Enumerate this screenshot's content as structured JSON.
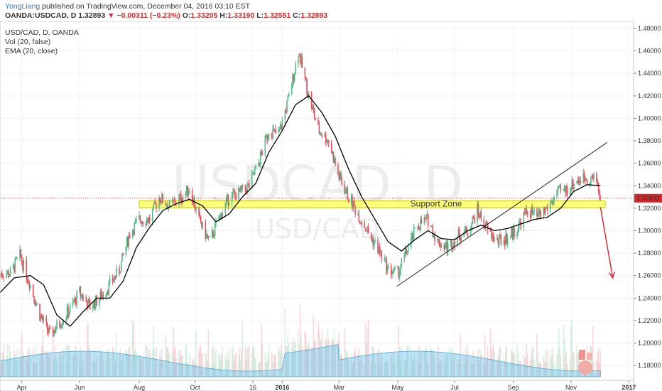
{
  "header": {
    "author": "YongLiang",
    "published_text": "published on TradingView.com, December 04, 2016 03:10 EST",
    "symbol": "OANDA:USDCAD, D",
    "last": "1.32893",
    "change": "−0.00311 (−0.23%)",
    "open_label": "O:",
    "open": "1.33205",
    "high_label": "H:",
    "high": "1.33190",
    "low_label": "L:",
    "low": "1.32551",
    "close_label": "C:",
    "close": "1.32893"
  },
  "legend": [
    "USD/CAD, D, OANDA",
    "Vol (20, false)",
    "EMA (20, close)"
  ],
  "watermark": {
    "big": "USDCAD, D",
    "small": "USD/CAD"
  },
  "annotations": {
    "support_zone": "Support Zone",
    "current_price": "1.32893"
  },
  "colors": {
    "up": "#53b987",
    "down": "#eb4d5c",
    "ema": "#000000",
    "volume_area": "#6fc1e8",
    "zone_fill": "#ffff66",
    "zone_stroke": "#c8c800",
    "arrow": "#e2202c",
    "price_tag": "#d62728"
  },
  "chart_data": {
    "type": "candlestick",
    "title": "USD/CAD, D, OANDA",
    "ylim": [
      1.17,
      1.48
    ],
    "y_ticks": [
      "1.48000",
      "1.46000",
      "1.44000",
      "1.42000",
      "1.40000",
      "1.38000",
      "1.36000",
      "1.34000",
      "1.32000",
      "1.30000",
      "1.28000",
      "1.26000",
      "1.24000",
      "1.22000",
      "1.20000",
      "1.18000"
    ],
    "x_ticks": [
      "Apr",
      "Jun",
      "Aug",
      "Oct",
      "16",
      "2016",
      "Mar",
      "May",
      "Jul",
      "Sep",
      "Nov",
      "2017"
    ],
    "x_start": "2015-03-09",
    "x_end": "2017-01-06",
    "closes": [
      [
        "2015-03-09",
        1.262
      ],
      [
        "2015-03-20",
        1.262
      ],
      [
        "2015-03-30",
        1.278
      ],
      [
        "2015-04-10",
        1.252
      ],
      [
        "2015-04-20",
        1.225
      ],
      [
        "2015-05-01",
        1.207
      ],
      [
        "2015-05-11",
        1.218
      ],
      [
        "2015-05-22",
        1.23
      ],
      [
        "2015-06-01",
        1.245
      ],
      [
        "2015-06-12",
        1.232
      ],
      [
        "2015-06-22",
        1.24
      ],
      [
        "2015-07-03",
        1.252
      ],
      [
        "2015-07-13",
        1.265
      ],
      [
        "2015-07-24",
        1.298
      ],
      [
        "2015-08-03",
        1.31
      ],
      [
        "2015-08-14",
        1.31
      ],
      [
        "2015-08-24",
        1.33
      ],
      [
        "2015-09-04",
        1.322
      ],
      [
        "2015-09-14",
        1.327
      ],
      [
        "2015-09-25",
        1.338
      ],
      [
        "2015-10-05",
        1.31
      ],
      [
        "2015-10-16",
        1.29
      ],
      [
        "2015-10-26",
        1.31
      ],
      [
        "2015-11-06",
        1.33
      ],
      [
        "2015-11-16",
        1.333
      ],
      [
        "2015-11-27",
        1.34
      ],
      [
        "2015-12-07",
        1.36
      ],
      [
        "2015-12-18",
        1.39
      ],
      [
        "2015-12-28",
        1.385
      ],
      [
        "2016-01-08",
        1.418
      ],
      [
        "2016-01-18",
        1.46
      ],
      [
        "2016-01-29",
        1.42
      ],
      [
        "2016-02-08",
        1.39
      ],
      [
        "2016-02-19",
        1.38
      ],
      [
        "2016-02-29",
        1.35
      ],
      [
        "2016-03-11",
        1.33
      ],
      [
        "2016-03-21",
        1.315
      ],
      [
        "2016-04-01",
        1.298
      ],
      [
        "2016-04-11",
        1.284
      ],
      [
        "2016-04-22",
        1.265
      ],
      [
        "2016-05-02",
        1.262
      ],
      [
        "2016-05-13",
        1.285
      ],
      [
        "2016-05-23",
        1.305
      ],
      [
        "2016-06-03",
        1.31
      ],
      [
        "2016-06-13",
        1.29
      ],
      [
        "2016-06-24",
        1.285
      ],
      [
        "2016-07-04",
        1.295
      ],
      [
        "2016-07-15",
        1.3
      ],
      [
        "2016-07-25",
        1.318
      ],
      [
        "2016-08-05",
        1.3
      ],
      [
        "2016-08-15",
        1.29
      ],
      [
        "2016-08-26",
        1.294
      ],
      [
        "2016-09-05",
        1.302
      ],
      [
        "2016-09-16",
        1.318
      ],
      [
        "2016-09-26",
        1.312
      ],
      [
        "2016-10-07",
        1.32
      ],
      [
        "2016-10-17",
        1.333
      ],
      [
        "2016-10-28",
        1.337
      ],
      [
        "2016-11-07",
        1.345
      ],
      [
        "2016-11-18",
        1.348
      ],
      [
        "2016-11-28",
        1.345
      ],
      [
        "2016-12-02",
        1.329
      ]
    ],
    "ema": [
      [
        "2015-03-09",
        1.245
      ],
      [
        "2015-03-24",
        1.258
      ],
      [
        "2015-04-10",
        1.26
      ],
      [
        "2015-04-24",
        1.252
      ],
      [
        "2015-05-08",
        1.225
      ],
      [
        "2015-05-22",
        1.215
      ],
      [
        "2015-06-05",
        1.228
      ],
      [
        "2015-06-19",
        1.24
      ],
      [
        "2015-07-03",
        1.24
      ],
      [
        "2015-07-17",
        1.255
      ],
      [
        "2015-07-31",
        1.285
      ],
      [
        "2015-08-14",
        1.303
      ],
      [
        "2015-08-28",
        1.318
      ],
      [
        "2015-09-11",
        1.324
      ],
      [
        "2015-09-25",
        1.328
      ],
      [
        "2015-10-09",
        1.322
      ],
      [
        "2015-10-23",
        1.308
      ],
      [
        "2015-11-06",
        1.315
      ],
      [
        "2015-11-20",
        1.33
      ],
      [
        "2015-12-04",
        1.342
      ],
      [
        "2015-12-18",
        1.37
      ],
      [
        "2016-01-01",
        1.389
      ],
      [
        "2016-01-15",
        1.412
      ],
      [
        "2016-01-29",
        1.42
      ],
      [
        "2016-02-12",
        1.405
      ],
      [
        "2016-02-26",
        1.384
      ],
      [
        "2016-03-11",
        1.355
      ],
      [
        "2016-03-25",
        1.33
      ],
      [
        "2016-04-08",
        1.31
      ],
      [
        "2016-04-22",
        1.29
      ],
      [
        "2016-05-06",
        1.282
      ],
      [
        "2016-05-20",
        1.292
      ],
      [
        "2016-06-03",
        1.3
      ],
      [
        "2016-06-17",
        1.293
      ],
      [
        "2016-07-01",
        1.292
      ],
      [
        "2016-07-15",
        1.3
      ],
      [
        "2016-07-29",
        1.305
      ],
      [
        "2016-08-12",
        1.3
      ],
      [
        "2016-08-26",
        1.302
      ],
      [
        "2016-09-09",
        1.306
      ],
      [
        "2016-09-23",
        1.31
      ],
      [
        "2016-10-07",
        1.312
      ],
      [
        "2016-10-21",
        1.32
      ],
      [
        "2016-11-04",
        1.335
      ],
      [
        "2016-11-18",
        1.341
      ],
      [
        "2016-12-02",
        1.34
      ]
    ],
    "volume_series_name": "Vol (20, false)",
    "ema_series_name": "EMA (20, close)",
    "support_zone": {
      "low": 1.3205,
      "high": 1.3265,
      "from": "2015-08-03",
      "to": "2016-12-07",
      "label": "Support Zone"
    },
    "trendline": {
      "from": [
        "2016-05-01",
        1.2505
      ],
      "to": [
        "2016-12-09",
        1.3785
      ]
    },
    "forecast_arrow": {
      "from": [
        "2016-12-02",
        1.321
      ],
      "to": [
        "2016-12-15",
        1.258
      ]
    },
    "last_price": 1.32893
  }
}
